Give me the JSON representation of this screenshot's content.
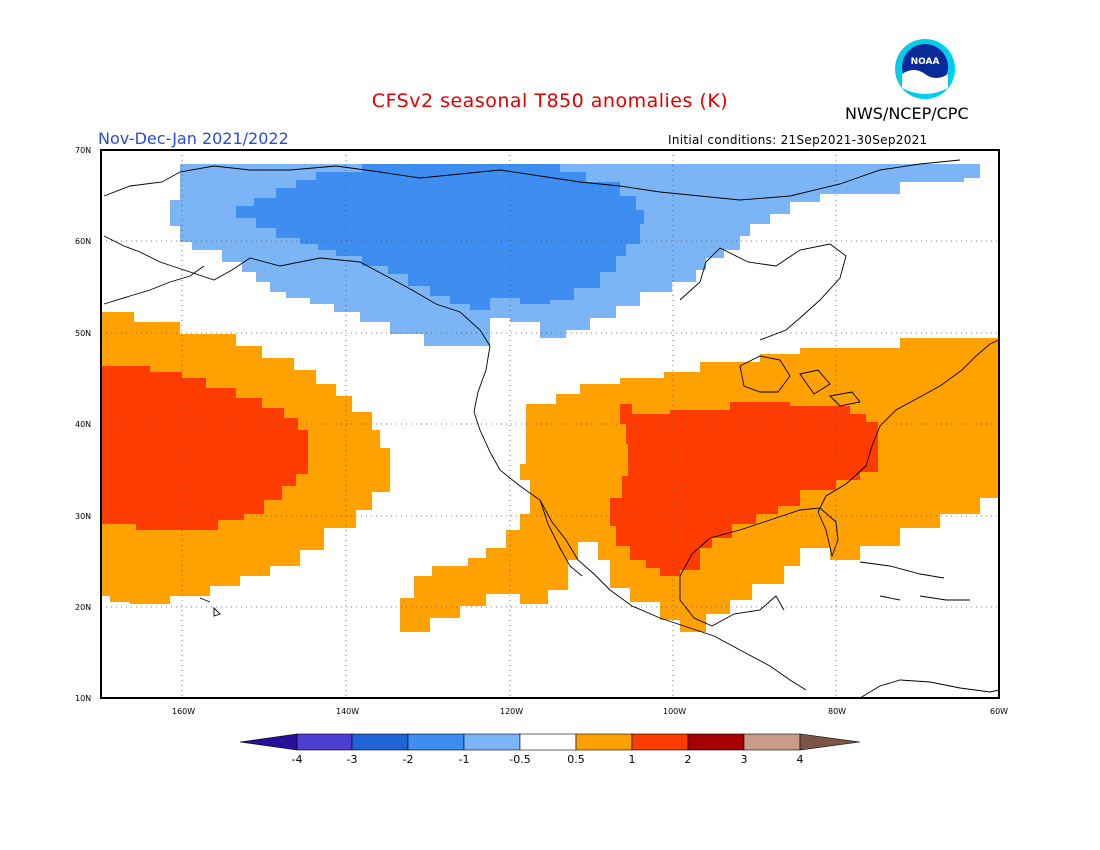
{
  "title": "CFSv2 seasonal T850 anomalies (K)",
  "organization": "NWS/NCEP/CPC",
  "logo_text": "NOAA",
  "period": "Nov-Dec-Jan 2021/2022",
  "initial_conditions": "Initial conditions: 21Sep2021-30Sep2021",
  "lat_labels": [
    "70N",
    "60N",
    "50N",
    "40N",
    "30N",
    "20N",
    "10N"
  ],
  "lon_labels": [
    "160W",
    "140W",
    "120W",
    "100W",
    "80W",
    "60W"
  ],
  "colorbar": {
    "labels": [
      "-4",
      "-3",
      "-2",
      "-1",
      "-0.5",
      "0.5",
      "1",
      "2",
      "3",
      "4"
    ],
    "colors": [
      "#2a0f9c",
      "#4c3ed1",
      "#1e64d8",
      "#3d8ef0",
      "#7cb5f5",
      "#ffffff",
      "#ffa100",
      "#ff3c00",
      "#a50000",
      "#c79c8a",
      "#7a5548"
    ]
  },
  "colors": {
    "cold2": "#3d8ef0",
    "cold1": "#7cb5f5",
    "warm1": "#ffa100",
    "warm2": "#ff3c00"
  }
}
